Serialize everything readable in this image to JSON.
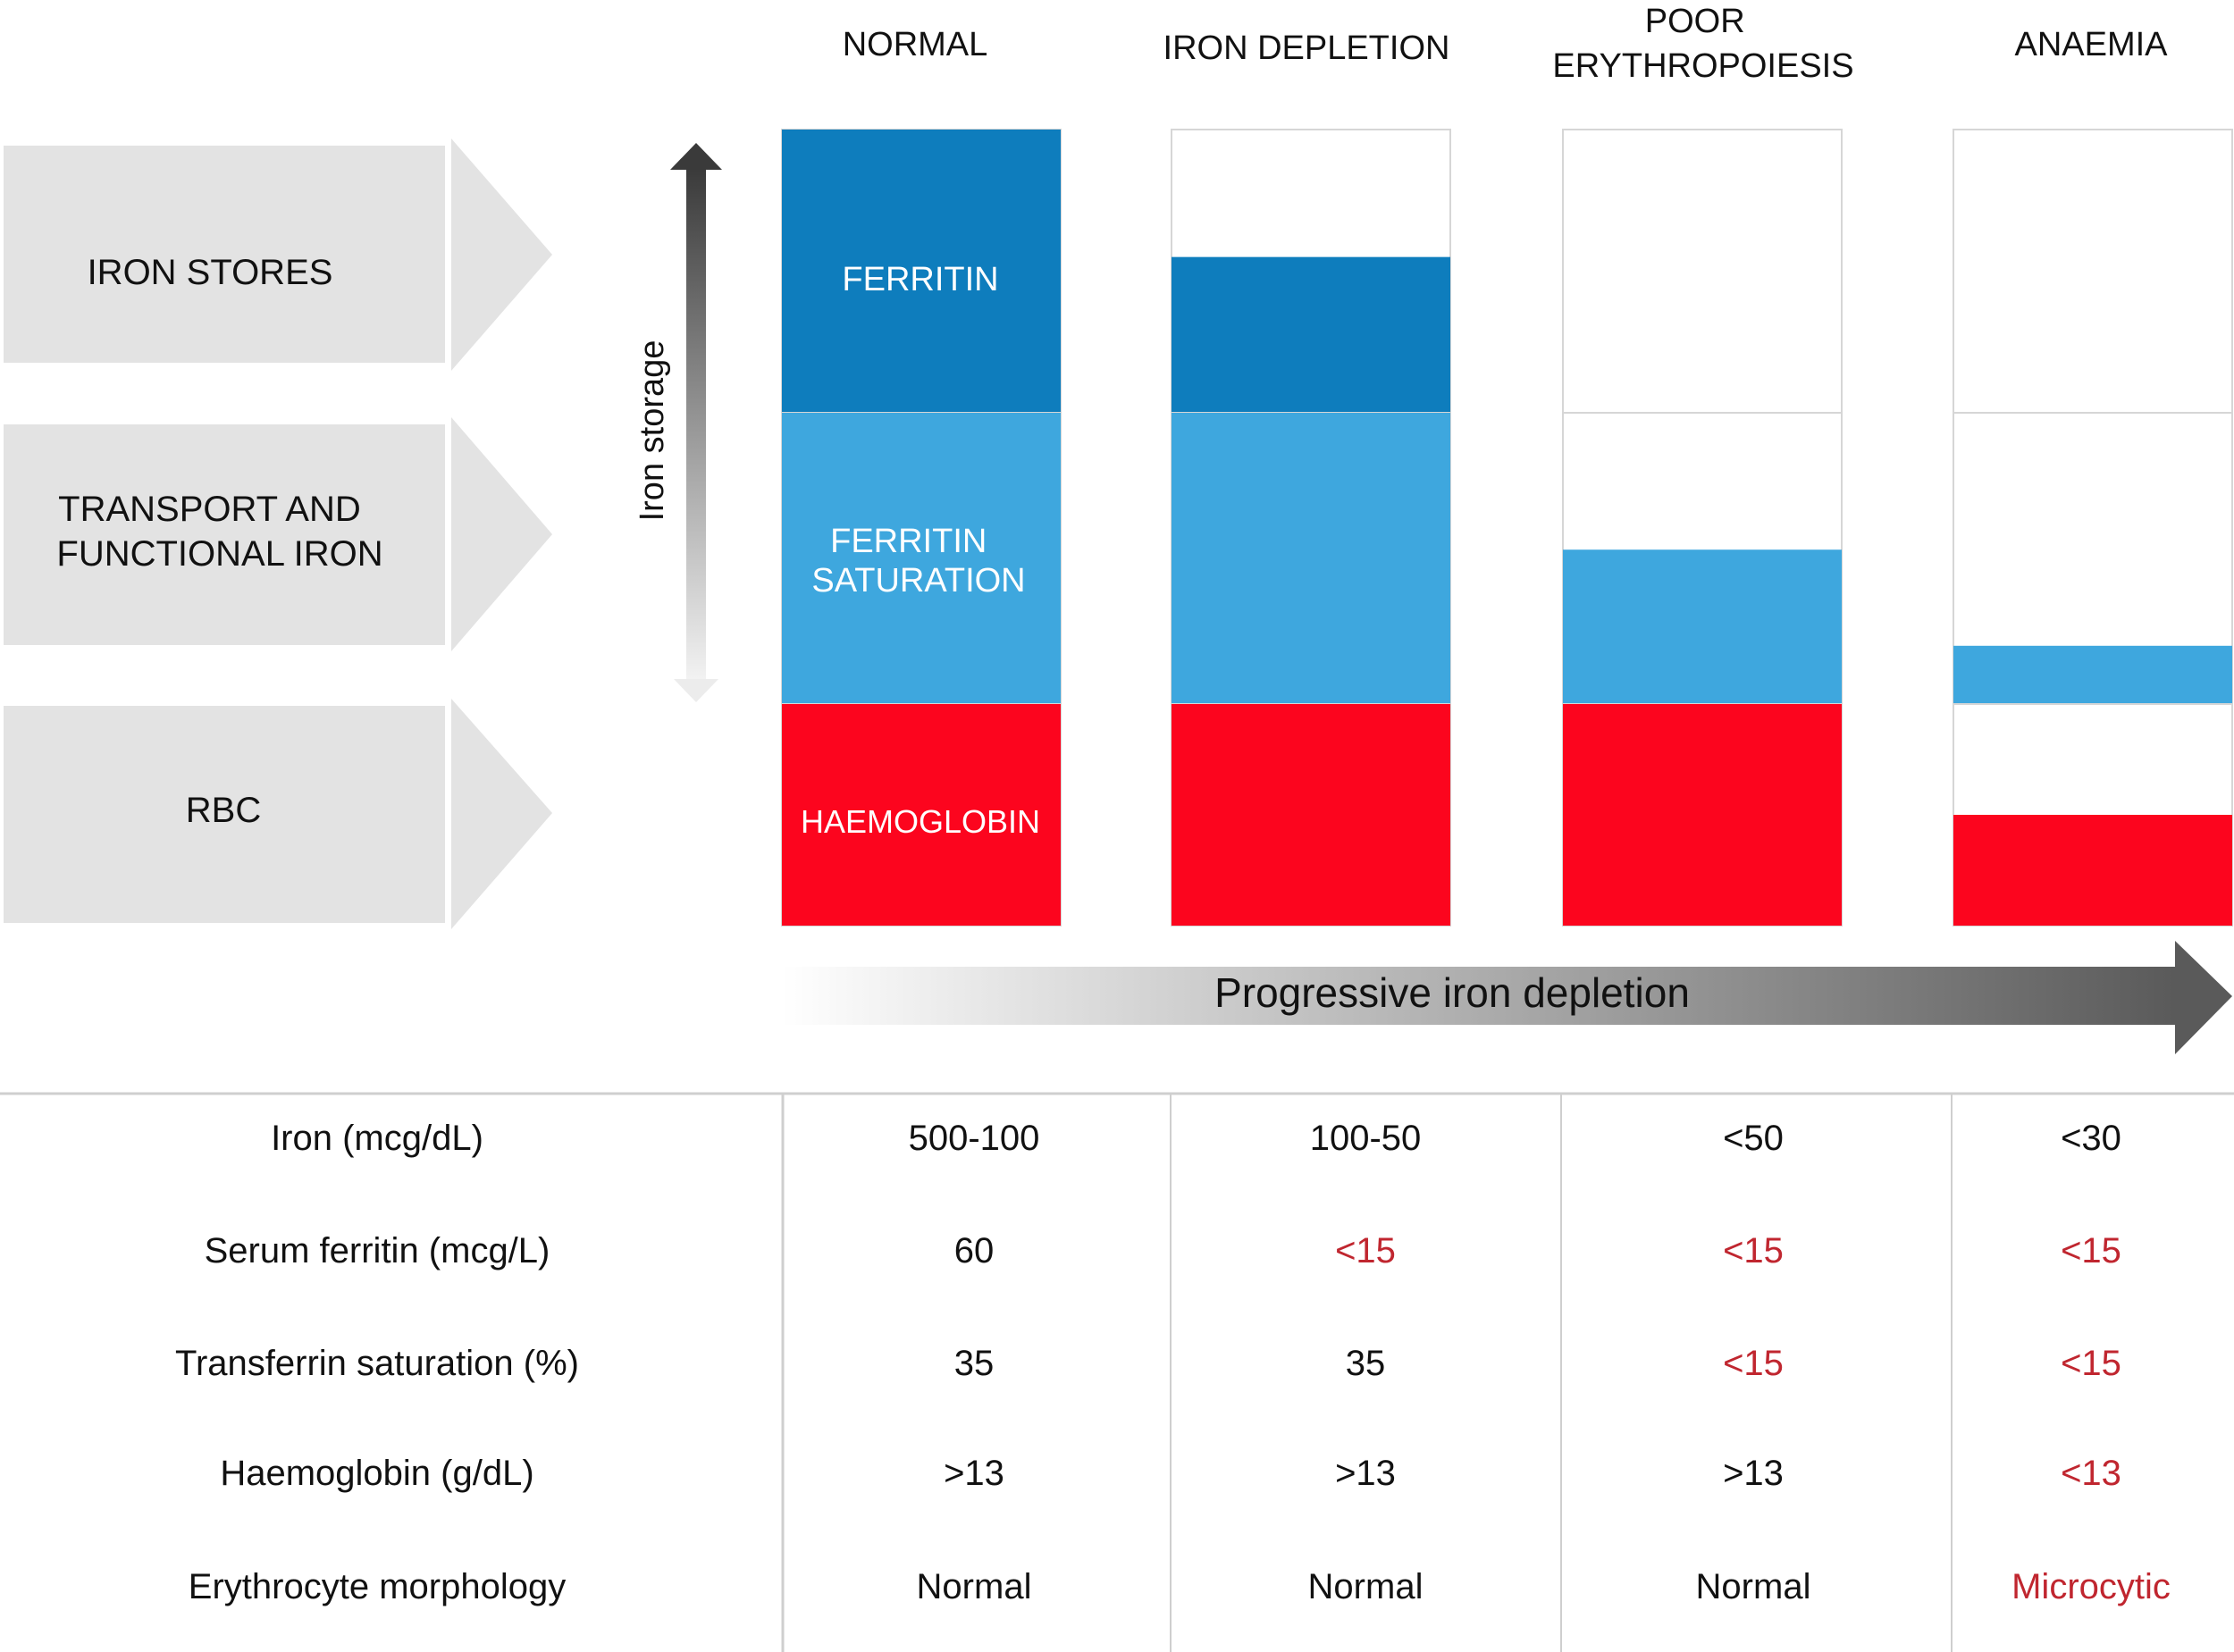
{
  "stages": [
    {
      "name": "NORMAL"
    },
    {
      "name": "IRON DEPLETION"
    },
    {
      "name": "POOR ERYTHROPOIESIS",
      "lines": [
        "POOR",
        "ERYTHROPOIESIS"
      ]
    },
    {
      "name": "ANAEMIA"
    }
  ],
  "compartments": [
    {
      "label": "IRON STORES",
      "lines": [
        "IRON STORES"
      ]
    },
    {
      "label": "TRANSPORT AND FUNCTIONAL IRON",
      "lines": [
        "TRANSPORT AND",
        "FUNCTIONAL IRON"
      ]
    },
    {
      "label": "RBC",
      "lines": [
        "RBC"
      ]
    }
  ],
  "bar_labels": {
    "ferritin": "FERRITIN",
    "ferritin_saturation": "FERRITIN SATURATION",
    "ferritin_saturation_lines": [
      "FERRITIN",
      "SATURATION"
    ],
    "haemoglobin": "HAEMOGLOBIN"
  },
  "fill_levels": {
    "iron_stores": [
      1.0,
      0.55,
      0.0,
      0.0
    ],
    "transport_functional": [
      1.0,
      1.0,
      0.53,
      0.2
    ],
    "haemoglobin": [
      1.0,
      1.0,
      1.0,
      0.5
    ]
  },
  "iron_storage_label": "Iron storage",
  "progress_label": "Progressive iron depletion",
  "table": {
    "rows": [
      {
        "label": "Iron (mcg/dL)",
        "values": [
          "500-100",
          "100-50",
          "<50",
          "<30"
        ],
        "abnormal": [
          false,
          false,
          false,
          false
        ]
      },
      {
        "label": "Serum ferritin (mcg/L)",
        "values": [
          "60",
          "<15",
          "<15",
          "<15"
        ],
        "abnormal": [
          false,
          true,
          true,
          true
        ]
      },
      {
        "label": "Transferrin saturation (%)",
        "values": [
          "35",
          "35",
          "<15",
          "<15"
        ],
        "abnormal": [
          false,
          false,
          true,
          true
        ]
      },
      {
        "label": "Haemoglobin (g/dL)",
        "values": [
          ">13",
          ">13",
          ">13",
          "<13"
        ],
        "abnormal": [
          false,
          false,
          false,
          true
        ]
      },
      {
        "label": "Erythrocyte morphology",
        "values": [
          "Normal",
          "Normal",
          "Normal",
          "Microcytic"
        ],
        "abnormal": [
          false,
          false,
          false,
          true
        ]
      }
    ]
  },
  "colors": {
    "ferritin": "#0e7dbd",
    "transport": "#3ea7de",
    "haemoglobin": "#fc051e",
    "abnormal_text": "#c0262f",
    "grey_box": "#e3e3e3"
  }
}
